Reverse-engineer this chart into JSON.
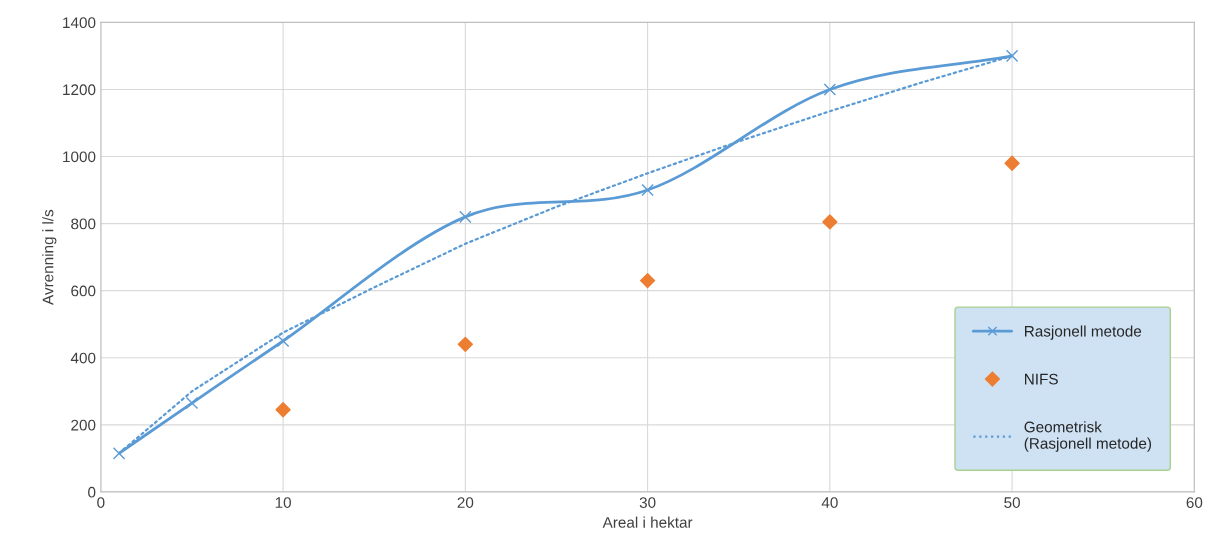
{
  "chart_data": {
    "type": "line",
    "xlabel": "Areal i hektar",
    "ylabel": "Avrenning i l/s",
    "xlim": [
      0,
      60
    ],
    "xticks": [
      0,
      10,
      20,
      30,
      40,
      50,
      60
    ],
    "ylim": [
      0,
      1400
    ],
    "yticks": [
      0,
      200,
      400,
      600,
      800,
      1000,
      1200,
      1400
    ],
    "grid": true,
    "legend": "bottom right",
    "series": [
      {
        "name": "Rasjonell metode",
        "color": "#5b9bd5",
        "marker": "cross",
        "line_style": "solid",
        "x": [
          1,
          5,
          10,
          20,
          30,
          40,
          50
        ],
        "values": [
          115,
          265,
          450,
          820,
          900,
          1200,
          1300
        ]
      },
      {
        "name": "NIFS",
        "type": "scatter",
        "color": "#ed7d31",
        "marker": "diamond",
        "x": [
          10,
          20,
          30,
          40,
          50
        ],
        "values": [
          245,
          440,
          630,
          805,
          980
        ]
      },
      {
        "name": "Geometrisk (Rasjonell metode)",
        "color": "#5b9bd5",
        "marker": "none",
        "line_style": "dotted",
        "x": [
          1,
          5,
          10,
          15,
          20,
          25,
          30,
          35,
          40,
          45,
          50
        ],
        "values": [
          115,
          300,
          475,
          610,
          740,
          850,
          950,
          1045,
          1135,
          1220,
          1300
        ]
      }
    ]
  }
}
